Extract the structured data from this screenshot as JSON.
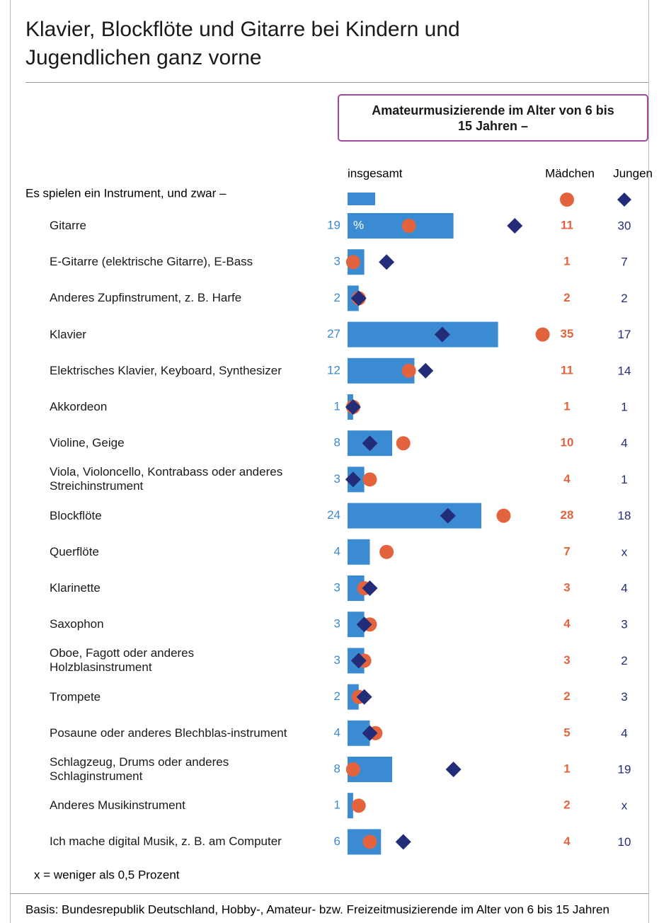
{
  "chart_data": {
    "type": "bar_dot",
    "title": "Klavier, Blockflöte und Gitarre bei Kindern und Jugendlichen ganz vorne",
    "subtitle": "Amateurmusizierende im Alter von 6 bis 15 Jahren –",
    "intro": "Es spielen ein Instrument, und zwar –",
    "unit_label": "%",
    "categories": [
      "Gitarre",
      "E-Gitarre (elektrische Gitarre), E-Bass",
      "Anderes Zupfinstrument, z. B. Harfe",
      "Klavier",
      "Elektrisches Klavier, Keyboard, Synthesizer",
      "Akkordeon",
      "Violine, Geige",
      "Viola, Violoncello, Kontrabass oder anderes Streichinstrument",
      "Blockflöte",
      "Querflöte",
      "Klarinette",
      "Saxophon",
      "Oboe, Fagott oder anderes Holzblasinstrument",
      "Trompete",
      "Posaune oder anderes Blechblas-instrument",
      "Schlagzeug, Drums oder anderes Schlaginstrument",
      "Anderes Musikinstrument",
      "Ich mache digital Musik, z. B. am Computer"
    ],
    "series": [
      {
        "name": "insgesamt",
        "color": "#3a8bd1",
        "values": [
          19,
          3,
          2,
          27,
          12,
          1,
          8,
          3,
          24,
          4,
          3,
          3,
          3,
          2,
          4,
          8,
          1,
          6
        ]
      },
      {
        "name": "Mädchen",
        "color": "#e4633f",
        "values": [
          11,
          1,
          2,
          35,
          11,
          1,
          10,
          4,
          28,
          7,
          3,
          4,
          3,
          2,
          5,
          1,
          2,
          4
        ]
      },
      {
        "name": "Jungen",
        "color": "#232c78",
        "values": [
          30,
          7,
          2,
          17,
          14,
          1,
          4,
          1,
          18,
          null,
          4,
          3,
          2,
          3,
          4,
          19,
          null,
          10
        ],
        "value_labels": [
          "30",
          "7",
          "2",
          "17",
          "14",
          "1",
          "4",
          "1",
          "18",
          "x",
          "4",
          "3",
          "2",
          "3",
          "4",
          "19",
          "x",
          "10"
        ]
      }
    ],
    "xlim": [
      0,
      40
    ],
    "note": "x = weniger als 0,5 Prozent",
    "source": "Basis: Bundesrepublik Deutschland, Hobby-, Amateur- bzw. Freizeitmusizierende im Alter von 6 bis 15 Jahren"
  }
}
